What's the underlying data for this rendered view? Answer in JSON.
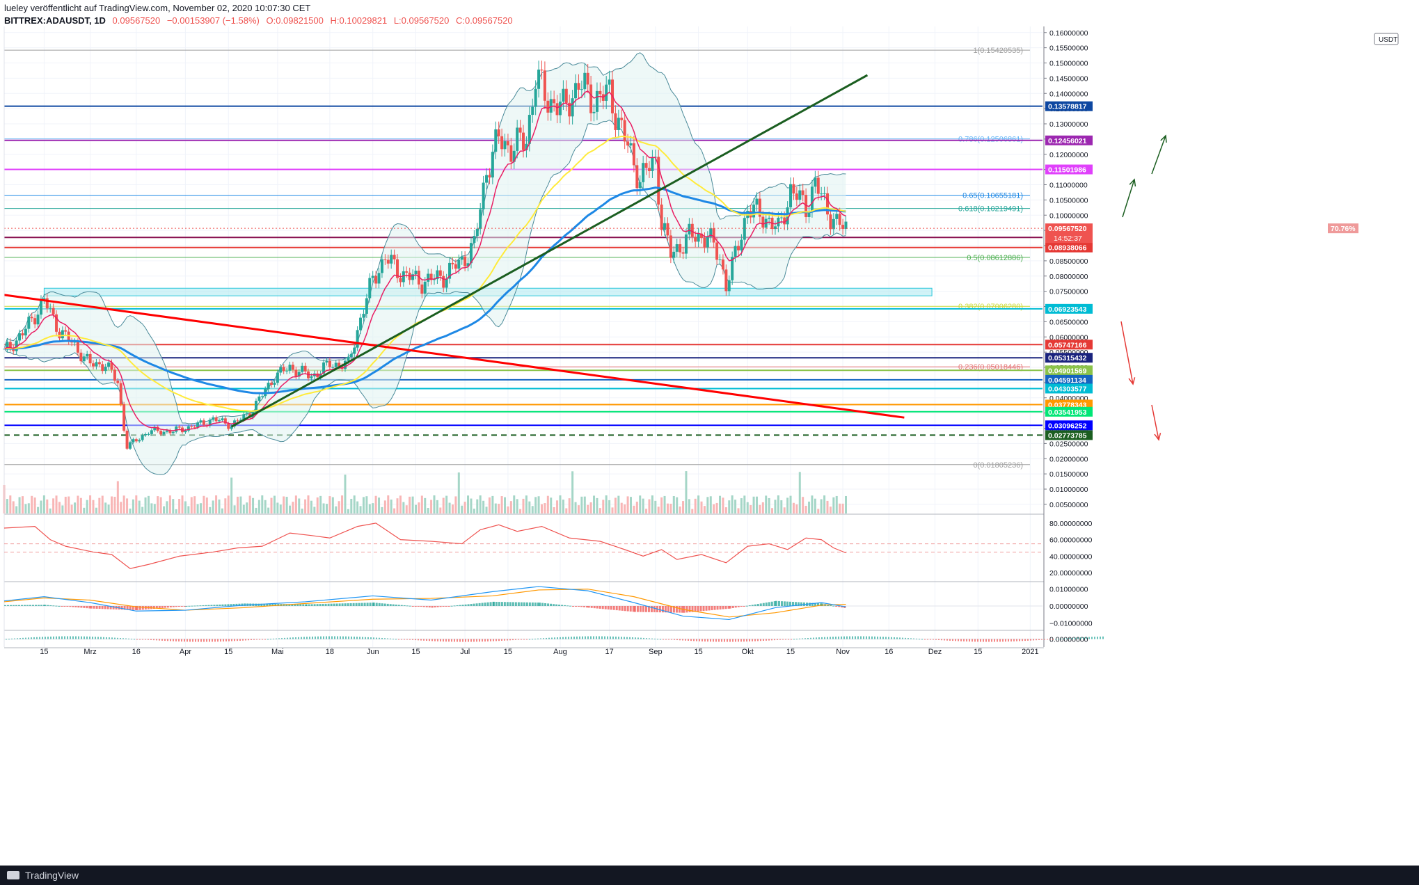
{
  "header": {
    "line1": "lueley veröffentlicht auf TradingView.com, November 02, 2020 10:07:30 CET",
    "symbol": "BITTREX:ADAUSDT, 1D",
    "last": "0.09567520",
    "change": "−0.00153907 (−1.58%)",
    "open": "O:0.09821500",
    "high": "H:0.10029821",
    "low": "L:0.09567520",
    "close": "C:0.09567520"
  },
  "currency_badge": "USDT",
  "footer_brand": "TradingView",
  "colors": {
    "up": "#26a69a",
    "down": "#ef5350",
    "ema_red": "#e91e63",
    "ema_yellow": "#ffeb3b",
    "ema_blue": "#1e88e5",
    "trend_red": "#ff0000",
    "trend_green": "#1b5e20",
    "rsi": "#ef5350",
    "macd": "#2196f3",
    "signal": "#ff9800"
  },
  "chart_data": {
    "type": "candlestick",
    "symbol": "BITTREX:ADAUSDT",
    "interval": "1D",
    "ylim": [
      0.002,
      0.162
    ],
    "y_ticks": [
      "0.16000000",
      "0.15500000",
      "0.15000000",
      "0.14500000",
      "0.14000000",
      "0.13500000",
      "0.13000000",
      "0.12500000",
      "0.12000000",
      "0.11500000",
      "0.11000000",
      "0.10500000",
      "0.10000000",
      "0.09500000",
      "0.09000000",
      "0.08500000",
      "0.08000000",
      "0.07500000",
      "0.07000000",
      "0.06500000",
      "0.06000000",
      "0.05500000",
      "0.05000000",
      "0.04500000",
      "0.04000000",
      "0.03500000",
      "0.03000000",
      "0.02500000",
      "0.02000000",
      "0.01500000",
      "0.01000000",
      "0.00500000"
    ],
    "x_ticks": [
      {
        "label": "15",
        "d": "2020-02-15"
      },
      {
        "label": "Mrz",
        "d": "2020-03-01"
      },
      {
        "label": "16",
        "d": "2020-03-16"
      },
      {
        "label": "Apr",
        "d": "2020-04-01"
      },
      {
        "label": "15",
        "d": "2020-04-15"
      },
      {
        "label": "Mai",
        "d": "2020-05-01"
      },
      {
        "label": "18",
        "d": "2020-05-18"
      },
      {
        "label": "Jun",
        "d": "2020-06-01"
      },
      {
        "label": "15",
        "d": "2020-06-15"
      },
      {
        "label": "Jul",
        "d": "2020-07-01"
      },
      {
        "label": "15",
        "d": "2020-07-15"
      },
      {
        "label": "Aug",
        "d": "2020-08-01"
      },
      {
        "label": "17",
        "d": "2020-08-17"
      },
      {
        "label": "Sep",
        "d": "2020-09-01"
      },
      {
        "label": "15",
        "d": "2020-09-15"
      },
      {
        "label": "Okt",
        "d": "2020-10-01"
      },
      {
        "label": "15",
        "d": "2020-10-15"
      },
      {
        "label": "Nov",
        "d": "2020-11-01"
      },
      {
        "label": "16",
        "d": "2020-11-16"
      },
      {
        "label": "Dez",
        "d": "2020-12-01"
      },
      {
        "label": "15",
        "d": "2020-12-15"
      },
      {
        "label": "2021",
        "d": "2021-01-01"
      }
    ],
    "start_date": "2020-02-02",
    "end_date": "2021-01-05",
    "close_points": [
      [
        "2020-02-02",
        0.055
      ],
      [
        "2020-02-08",
        0.061
      ],
      [
        "2020-02-15",
        0.072
      ],
      [
        "2020-02-20",
        0.062
      ],
      [
        "2020-02-25",
        0.057
      ],
      [
        "2020-03-01",
        0.051
      ],
      [
        "2020-03-06",
        0.051
      ],
      [
        "2020-03-10",
        0.045
      ],
      [
        "2020-03-12",
        0.03
      ],
      [
        "2020-03-13",
        0.024
      ],
      [
        "2020-03-16",
        0.026
      ],
      [
        "2020-03-20",
        0.029
      ],
      [
        "2020-03-28",
        0.029
      ],
      [
        "2020-04-05",
        0.031
      ],
      [
        "2020-04-10",
        0.033
      ],
      [
        "2020-04-16",
        0.031
      ],
      [
        "2020-04-22",
        0.035
      ],
      [
        "2020-04-30",
        0.047
      ],
      [
        "2020-05-05",
        0.05
      ],
      [
        "2020-05-12",
        0.047
      ],
      [
        "2020-05-18",
        0.051
      ],
      [
        "2020-05-24",
        0.051
      ],
      [
        "2020-05-28",
        0.066
      ],
      [
        "2020-06-01",
        0.079
      ],
      [
        "2020-06-05",
        0.086
      ],
      [
        "2020-06-10",
        0.081
      ],
      [
        "2020-06-17",
        0.078
      ],
      [
        "2020-06-24",
        0.08
      ],
      [
        "2020-06-30",
        0.085
      ],
      [
        "2020-07-04",
        0.09
      ],
      [
        "2020-07-08",
        0.115
      ],
      [
        "2020-07-12",
        0.125
      ],
      [
        "2020-07-16",
        0.122
      ],
      [
        "2020-07-21",
        0.125
      ],
      [
        "2020-07-24",
        0.145
      ],
      [
        "2020-07-28",
        0.138
      ],
      [
        "2020-08-02",
        0.135
      ],
      [
        "2020-08-07",
        0.143
      ],
      [
        "2020-08-12",
        0.138
      ],
      [
        "2020-08-17",
        0.14
      ],
      [
        "2020-08-22",
        0.125
      ],
      [
        "2020-08-27",
        0.112
      ],
      [
        "2020-09-01",
        0.118
      ],
      [
        "2020-09-03",
        0.098
      ],
      [
        "2020-09-06",
        0.087
      ],
      [
        "2020-09-12",
        0.093
      ],
      [
        "2020-09-18",
        0.093
      ],
      [
        "2020-09-22",
        0.086
      ],
      [
        "2020-09-24",
        0.077
      ],
      [
        "2020-09-26",
        0.083
      ],
      [
        "2020-10-01",
        0.102
      ],
      [
        "2020-10-06",
        0.1
      ],
      [
        "2020-10-11",
        0.095
      ],
      [
        "2020-10-15",
        0.108
      ],
      [
        "2020-10-20",
        0.103
      ],
      [
        "2020-10-23",
        0.11
      ],
      [
        "2020-10-27",
        0.102
      ],
      [
        "2020-10-30",
        0.097
      ],
      [
        "2020-11-02",
        0.0957
      ]
    ],
    "price_lines": [
      {
        "v": 0.13578817,
        "label": "0.13578817",
        "color": "#0d47a1"
      },
      {
        "v": 0.12456021,
        "label": "0.12456021",
        "color": "#9c27b0"
      },
      {
        "v": 0.11501986,
        "label": "0.11501986",
        "color": "#e040fb"
      },
      {
        "v": 0.0926727,
        "label": "0.09267270",
        "color": "#880e4f"
      },
      {
        "v": 0.08938066,
        "label": "0.08938066",
        "color": "#e53935"
      },
      {
        "v": 0.06923543,
        "label": "0.06923543",
        "color": "#00bcd4"
      },
      {
        "v": 0.05747166,
        "label": "0.05747166",
        "color": "#e53935"
      },
      {
        "v": 0.05315432,
        "label": "0.05315432",
        "color": "#1a237e"
      },
      {
        "v": 0.04901569,
        "label": "0.04901569",
        "color": "#8bc34a"
      },
      {
        "v": 0.04591134,
        "label": "0.04591134",
        "color": "#1565c0"
      },
      {
        "v": 0.04303577,
        "label": "0.04303577",
        "color": "#00bcd4"
      },
      {
        "v": 0.03778343,
        "label": "0.03778343",
        "color": "#ff9800"
      },
      {
        "v": 0.03541953,
        "label": "0.03541953",
        "color": "#00e676"
      },
      {
        "v": 0.03096252,
        "label": "0.03096252",
        "color": "#0000ff"
      },
      {
        "v": 0.02773785,
        "label": "0.02773785",
        "color": "#1b5e20"
      }
    ],
    "current_price": {
      "v": 0.0956752,
      "label": "0.09567520",
      "percent": "70.76%",
      "countdown": "14:52:37"
    },
    "fib_levels": [
      {
        "v": 0.15420535,
        "label": "1(0.15420535)",
        "color": "#9e9e9e"
      },
      {
        "v": 0.12506861,
        "label": "0.786(0.12506861)",
        "color": "#64b5f6"
      },
      {
        "v": 0.10655181,
        "label": "0.65(0.10655181)",
        "color": "#1e88e5"
      },
      {
        "v": 0.10219491,
        "label": "0.618(0.10219491)",
        "color": "#26a69a"
      },
      {
        "v": 0.08612886,
        "label": "0.5(0.08612886)",
        "color": "#4caf50"
      },
      {
        "v": 0.0700628,
        "label": "0.382(0.07006280)",
        "color": "#cddc39"
      },
      {
        "v": 0.05018446,
        "label": "0.236(0.05018446)",
        "color": "#e57373"
      },
      {
        "v": 0.01805236,
        "label": "0(0.01805236)",
        "color": "#9e9e9e"
      }
    ],
    "zone": {
      "from": "2020-02-15",
      "to": "2020-11-30",
      "low": 0.0735,
      "high": 0.076
    },
    "trendlines": [
      {
        "from": [
          "2020-02-02",
          0.0738
        ],
        "to": [
          "2020-11-21",
          0.0335
        ],
        "color": "#ff0000"
      },
      {
        "from": [
          "2020-04-16",
          0.0305
        ],
        "to": [
          "2020-11-09",
          0.146
        ],
        "color": "#1b5e20"
      }
    ],
    "rsi": {
      "ticks": [
        "80.00000000",
        "60.00000000",
        "40.00000000",
        "20.00000000"
      ],
      "levels": [
        55,
        45
      ],
      "points": [
        [
          "2020-02-02",
          74
        ],
        [
          "2020-02-12",
          76
        ],
        [
          "2020-02-17",
          60
        ],
        [
          "2020-02-22",
          52
        ],
        [
          "2020-03-02",
          45
        ],
        [
          "2020-03-08",
          42
        ],
        [
          "2020-03-14",
          25
        ],
        [
          "2020-03-20",
          30
        ],
        [
          "2020-03-30",
          40
        ],
        [
          "2020-04-10",
          45
        ],
        [
          "2020-04-18",
          50
        ],
        [
          "2020-04-26",
          52
        ],
        [
          "2020-05-05",
          68
        ],
        [
          "2020-05-12",
          65
        ],
        [
          "2020-05-18",
          62
        ],
        [
          "2020-05-27",
          76
        ],
        [
          "2020-06-02",
          80
        ],
        [
          "2020-06-10",
          60
        ],
        [
          "2020-06-20",
          58
        ],
        [
          "2020-06-30",
          55
        ],
        [
          "2020-07-06",
          72
        ],
        [
          "2020-07-12",
          78
        ],
        [
          "2020-07-18",
          70
        ],
        [
          "2020-07-26",
          76
        ],
        [
          "2020-08-04",
          62
        ],
        [
          "2020-08-14",
          58
        ],
        [
          "2020-08-22",
          48
        ],
        [
          "2020-08-28",
          40
        ],
        [
          "2020-09-03",
          48
        ],
        [
          "2020-09-08",
          36
        ],
        [
          "2020-09-16",
          42
        ],
        [
          "2020-09-24",
          32
        ],
        [
          "2020-10-01",
          52
        ],
        [
          "2020-10-08",
          55
        ],
        [
          "2020-10-14",
          48
        ],
        [
          "2020-10-20",
          62
        ],
        [
          "2020-10-25",
          60
        ],
        [
          "2020-10-29",
          50
        ],
        [
          "2020-11-02",
          44
        ]
      ]
    },
    "macd": {
      "ticks": [
        "0.01000000",
        "0.00000000",
        "−0.01000000"
      ],
      "points": [
        [
          "2020-02-02",
          0.003,
          0.0025
        ],
        [
          "2020-02-15",
          0.0055,
          0.0048
        ],
        [
          "2020-03-01",
          0.002,
          0.0035
        ],
        [
          "2020-03-16",
          -0.003,
          -0.0005
        ],
        [
          "2020-04-01",
          -0.0025,
          -0.0025
        ],
        [
          "2020-04-20",
          0.0005,
          -0.001
        ],
        [
          "2020-05-10",
          0.0025,
          0.0015
        ],
        [
          "2020-06-01",
          0.006,
          0.004
        ],
        [
          "2020-06-20",
          0.0035,
          0.0045
        ],
        [
          "2020-07-10",
          0.0085,
          0.006
        ],
        [
          "2020-07-25",
          0.0115,
          0.0095
        ],
        [
          "2020-08-10",
          0.009,
          0.01
        ],
        [
          "2020-08-25",
          0.002,
          0.0055
        ],
        [
          "2020-09-10",
          -0.006,
          -0.002
        ],
        [
          "2020-09-25",
          -0.008,
          -0.0065
        ],
        [
          "2020-10-10",
          -0.001,
          -0.004
        ],
        [
          "2020-10-25",
          0.002,
          0.0005
        ],
        [
          "2020-11-02",
          -0.0005,
          0.001
        ]
      ]
    },
    "osc": {
      "ticks": [
        "0.00000000"
      ]
    }
  }
}
